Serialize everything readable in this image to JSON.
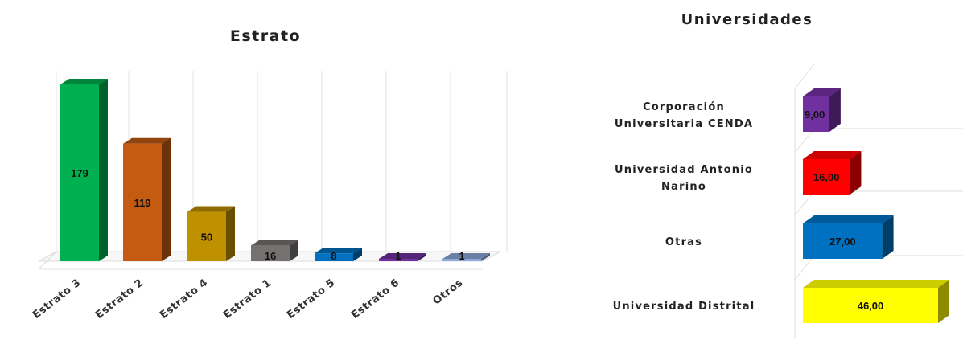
{
  "chart_data": [
    {
      "type": "bar",
      "orientation": "vertical",
      "style": "3d",
      "title": "Estrato",
      "categories": [
        "Estrato 3",
        "Estrato 2",
        "Estrato 4",
        "Estrato 1",
        "Estrato 5",
        "Estrato 6",
        "Otros"
      ],
      "values": [
        179,
        119,
        50,
        16,
        8,
        1,
        1
      ],
      "value_labels": [
        "179",
        "119",
        "50",
        "16",
        "8",
        "1",
        "1"
      ],
      "colors": [
        "#00b050",
        "#c55a11",
        "#bf9000",
        "#767171",
        "#0070c0",
        "#7030a0",
        "#8faadc"
      ],
      "ylim": [
        0,
        190
      ],
      "grid": true,
      "legend": "none"
    },
    {
      "type": "bar",
      "orientation": "horizontal",
      "style": "3d",
      "title": "Universidades",
      "categories": [
        "Corporación Universitaria CENDA",
        "Universidad Antonio Nariño",
        "Otras",
        "Universidad Distrital"
      ],
      "values": [
        9.0,
        16.0,
        27.0,
        46.0
      ],
      "value_labels": [
        "9,00",
        "16,00",
        "27,00",
        "46,00"
      ],
      "colors": [
        "#7030a0",
        "#ff0000",
        "#0070c0",
        "#ffff00"
      ],
      "xlim": [
        0,
        46
      ],
      "grid": true,
      "legend": "none"
    }
  ]
}
